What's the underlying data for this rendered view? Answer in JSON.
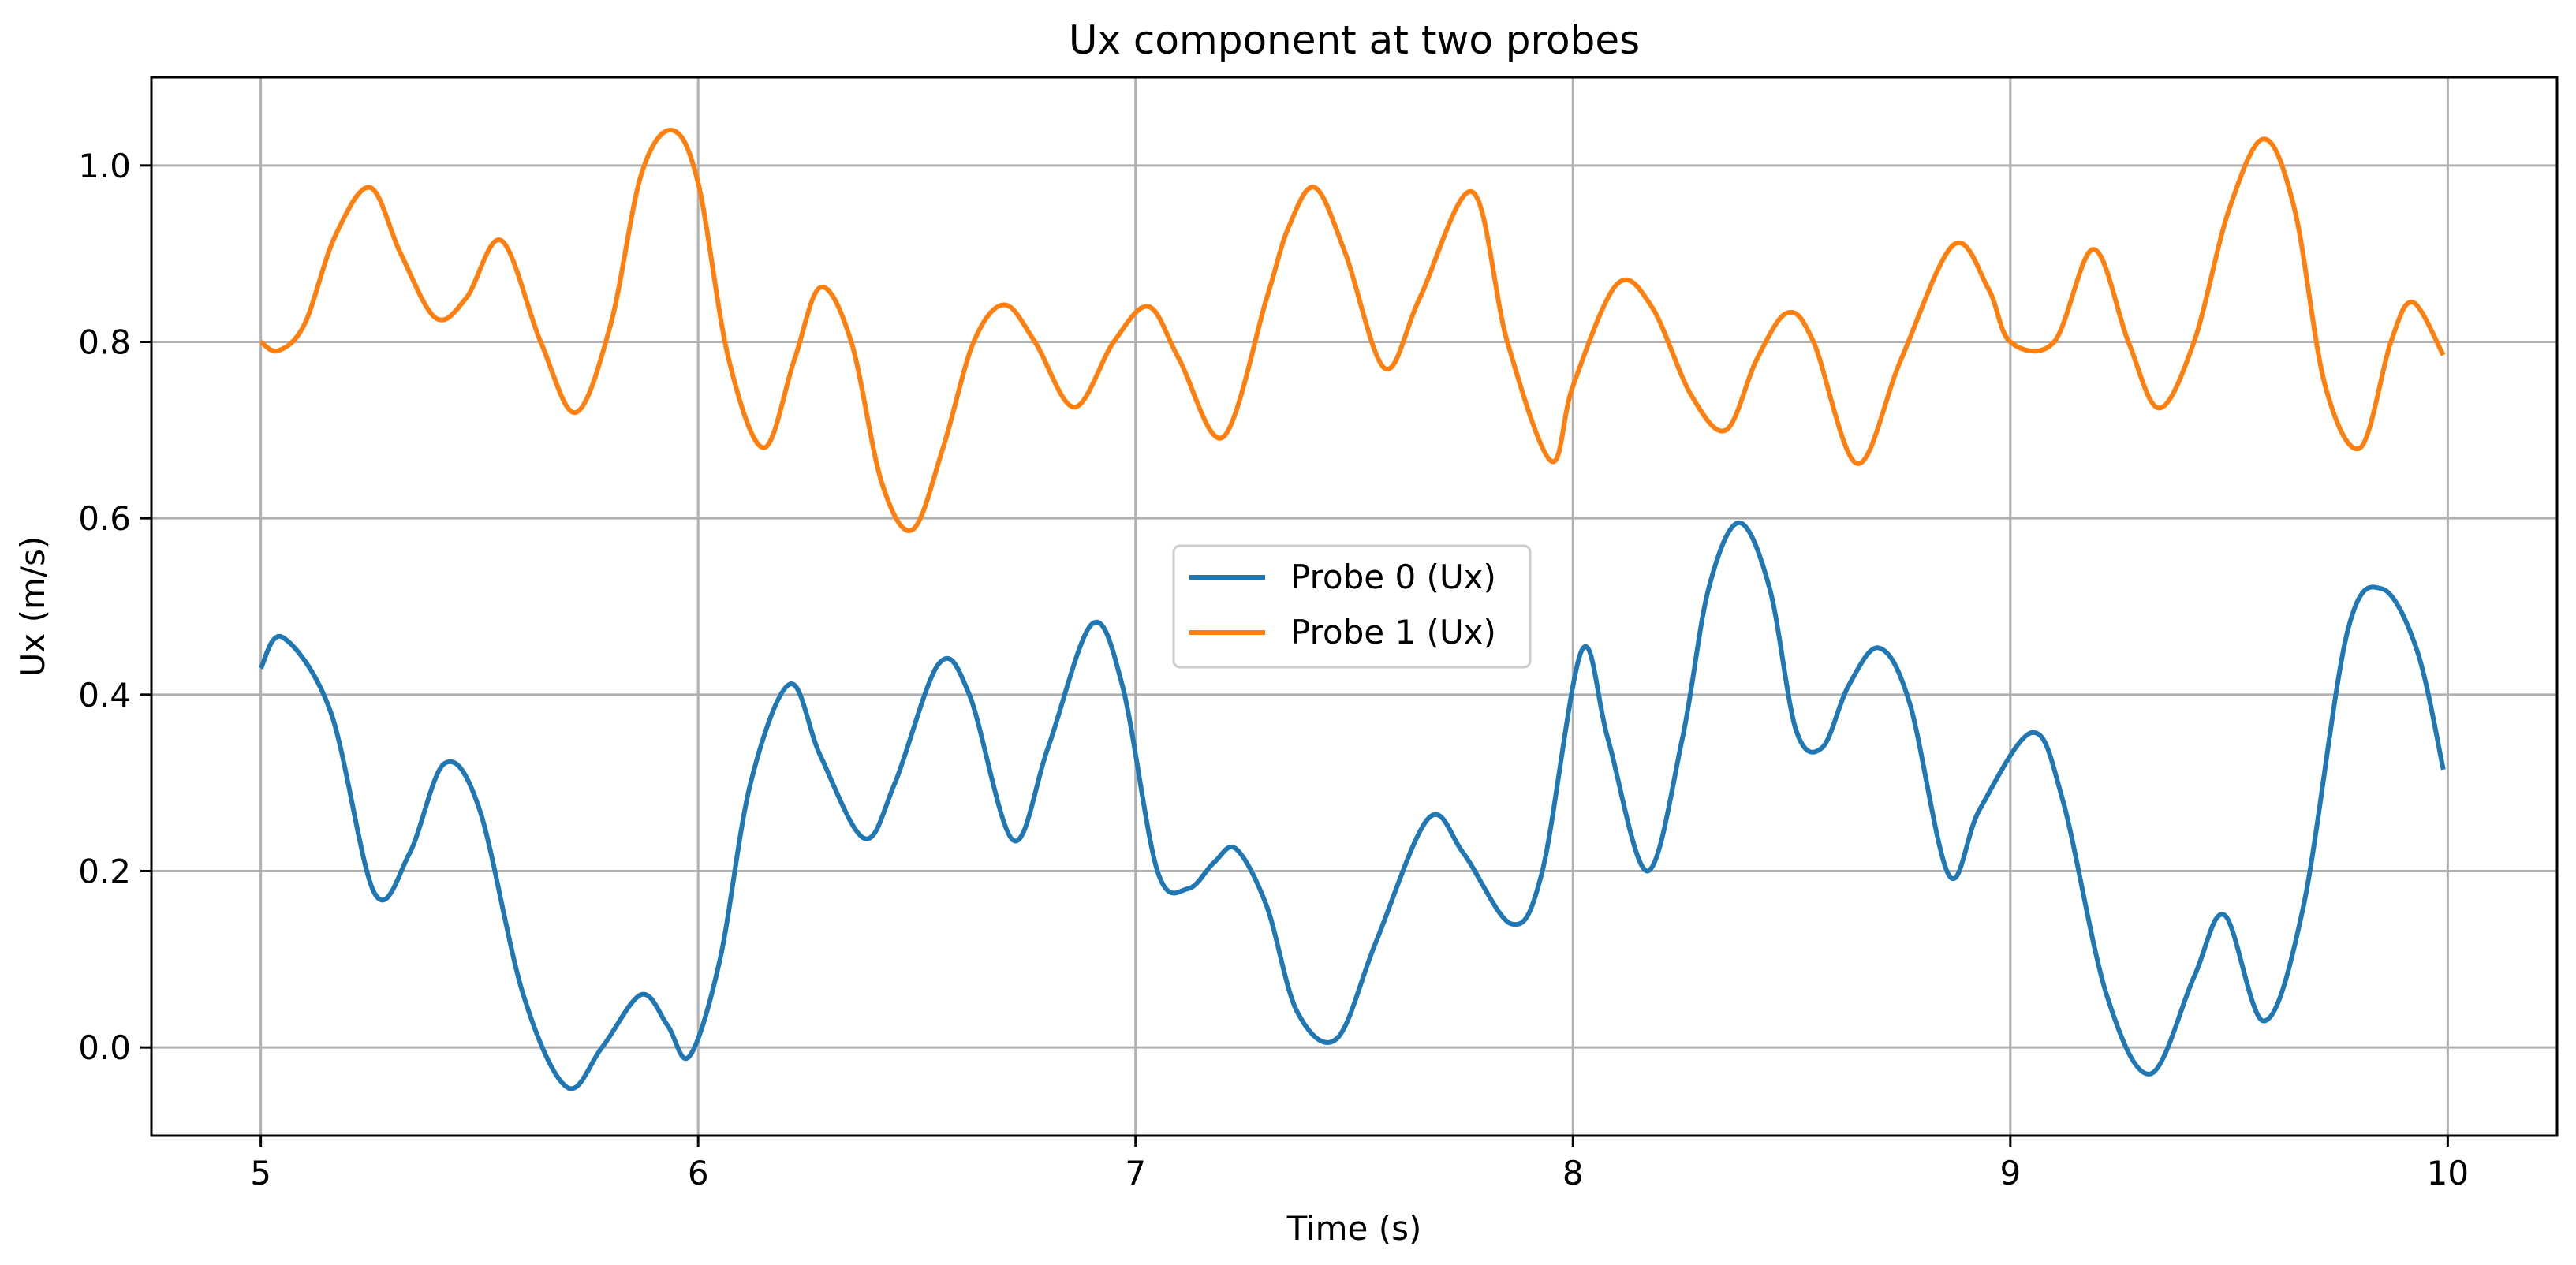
{
  "chart_data": {
    "type": "line",
    "title": "Ux component at two probes",
    "xlabel": "Time (s)",
    "ylabel": "Ux (m/s)",
    "xlim": [
      4.75,
      10.25
    ],
    "ylim": [
      -0.1,
      1.1
    ],
    "xticks": [
      5,
      6,
      7,
      8,
      9,
      10
    ],
    "yticks": [
      0.0,
      0.2,
      0.4,
      0.6,
      0.8,
      1.0
    ],
    "xtick_labels": [
      "5",
      "6",
      "7",
      "8",
      "9",
      "10"
    ],
    "ytick_labels": [
      "0.0",
      "0.2",
      "0.4",
      "0.6",
      "0.8",
      "1.0"
    ],
    "grid": true,
    "legend_position": "center",
    "series": [
      {
        "name": "Probe 0 (Ux)",
        "color": "#1f77b4",
        "x": [
          5.0,
          5.05,
          5.16,
          5.26,
          5.34,
          5.42,
          5.5,
          5.6,
          5.7,
          5.78,
          5.87,
          5.93,
          5.98,
          6.05,
          6.12,
          6.21,
          6.28,
          6.38,
          6.45,
          6.55,
          6.62,
          6.72,
          6.8,
          6.9,
          6.97,
          7.05,
          7.12,
          7.18,
          7.23,
          7.3,
          7.37,
          7.46,
          7.55,
          7.67,
          7.75,
          7.86,
          7.93,
          8.02,
          8.08,
          8.17,
          8.25,
          8.31,
          8.38,
          8.45,
          8.51,
          8.57,
          8.63,
          8.7,
          8.77,
          8.86,
          8.93,
          9.05,
          9.12,
          9.22,
          9.32,
          9.42,
          9.49,
          9.58,
          9.67,
          9.77,
          9.85,
          9.93,
          9.99
        ],
        "y": [
          0.43,
          0.465,
          0.38,
          0.175,
          0.22,
          0.322,
          0.27,
          0.06,
          -0.045,
          0.0,
          0.06,
          0.025,
          -0.01,
          0.1,
          0.3,
          0.412,
          0.33,
          0.237,
          0.3,
          0.435,
          0.4,
          0.235,
          0.34,
          0.48,
          0.41,
          0.2,
          0.18,
          0.21,
          0.225,
          0.16,
          0.04,
          0.01,
          0.12,
          0.26,
          0.22,
          0.14,
          0.2,
          0.45,
          0.35,
          0.2,
          0.35,
          0.52,
          0.595,
          0.52,
          0.36,
          0.34,
          0.41,
          0.453,
          0.39,
          0.195,
          0.27,
          0.357,
          0.28,
          0.06,
          -0.03,
          0.08,
          0.15,
          0.03,
          0.16,
          0.47,
          0.52,
          0.45,
          0.315
        ]
      },
      {
        "name": "Probe 1 (Ux)",
        "color": "#ff7f0e",
        "x": [
          5.0,
          5.04,
          5.1,
          5.17,
          5.25,
          5.32,
          5.4,
          5.47,
          5.55,
          5.64,
          5.72,
          5.8,
          5.87,
          5.94,
          6.0,
          6.07,
          6.15,
          6.22,
          6.28,
          6.35,
          6.42,
          6.49,
          6.56,
          6.63,
          6.7,
          6.77,
          6.86,
          6.95,
          7.03,
          7.1,
          7.2,
          7.3,
          7.35,
          7.41,
          7.48,
          7.57,
          7.65,
          7.77,
          7.85,
          7.95,
          8.0,
          8.1,
          8.18,
          8.27,
          8.35,
          8.42,
          8.49,
          8.55,
          8.65,
          8.75,
          8.87,
          8.95,
          9.0,
          9.1,
          9.19,
          9.27,
          9.34,
          9.42,
          9.5,
          9.58,
          9.65,
          9.72,
          9.8,
          9.87,
          9.92,
          9.99
        ],
        "y": [
          0.8,
          0.79,
          0.82,
          0.92,
          0.975,
          0.9,
          0.827,
          0.85,
          0.915,
          0.8,
          0.72,
          0.82,
          0.99,
          1.04,
          0.98,
          0.78,
          0.68,
          0.78,
          0.862,
          0.8,
          0.64,
          0.587,
          0.68,
          0.8,
          0.842,
          0.8,
          0.726,
          0.8,
          0.84,
          0.78,
          0.692,
          0.85,
          0.93,
          0.975,
          0.9,
          0.77,
          0.85,
          0.97,
          0.8,
          0.665,
          0.75,
          0.865,
          0.84,
          0.74,
          0.7,
          0.78,
          0.833,
          0.8,
          0.662,
          0.78,
          0.91,
          0.86,
          0.8,
          0.8,
          0.905,
          0.8,
          0.725,
          0.8,
          0.95,
          1.03,
          0.95,
          0.75,
          0.68,
          0.8,
          0.845,
          0.785
        ]
      }
    ]
  }
}
